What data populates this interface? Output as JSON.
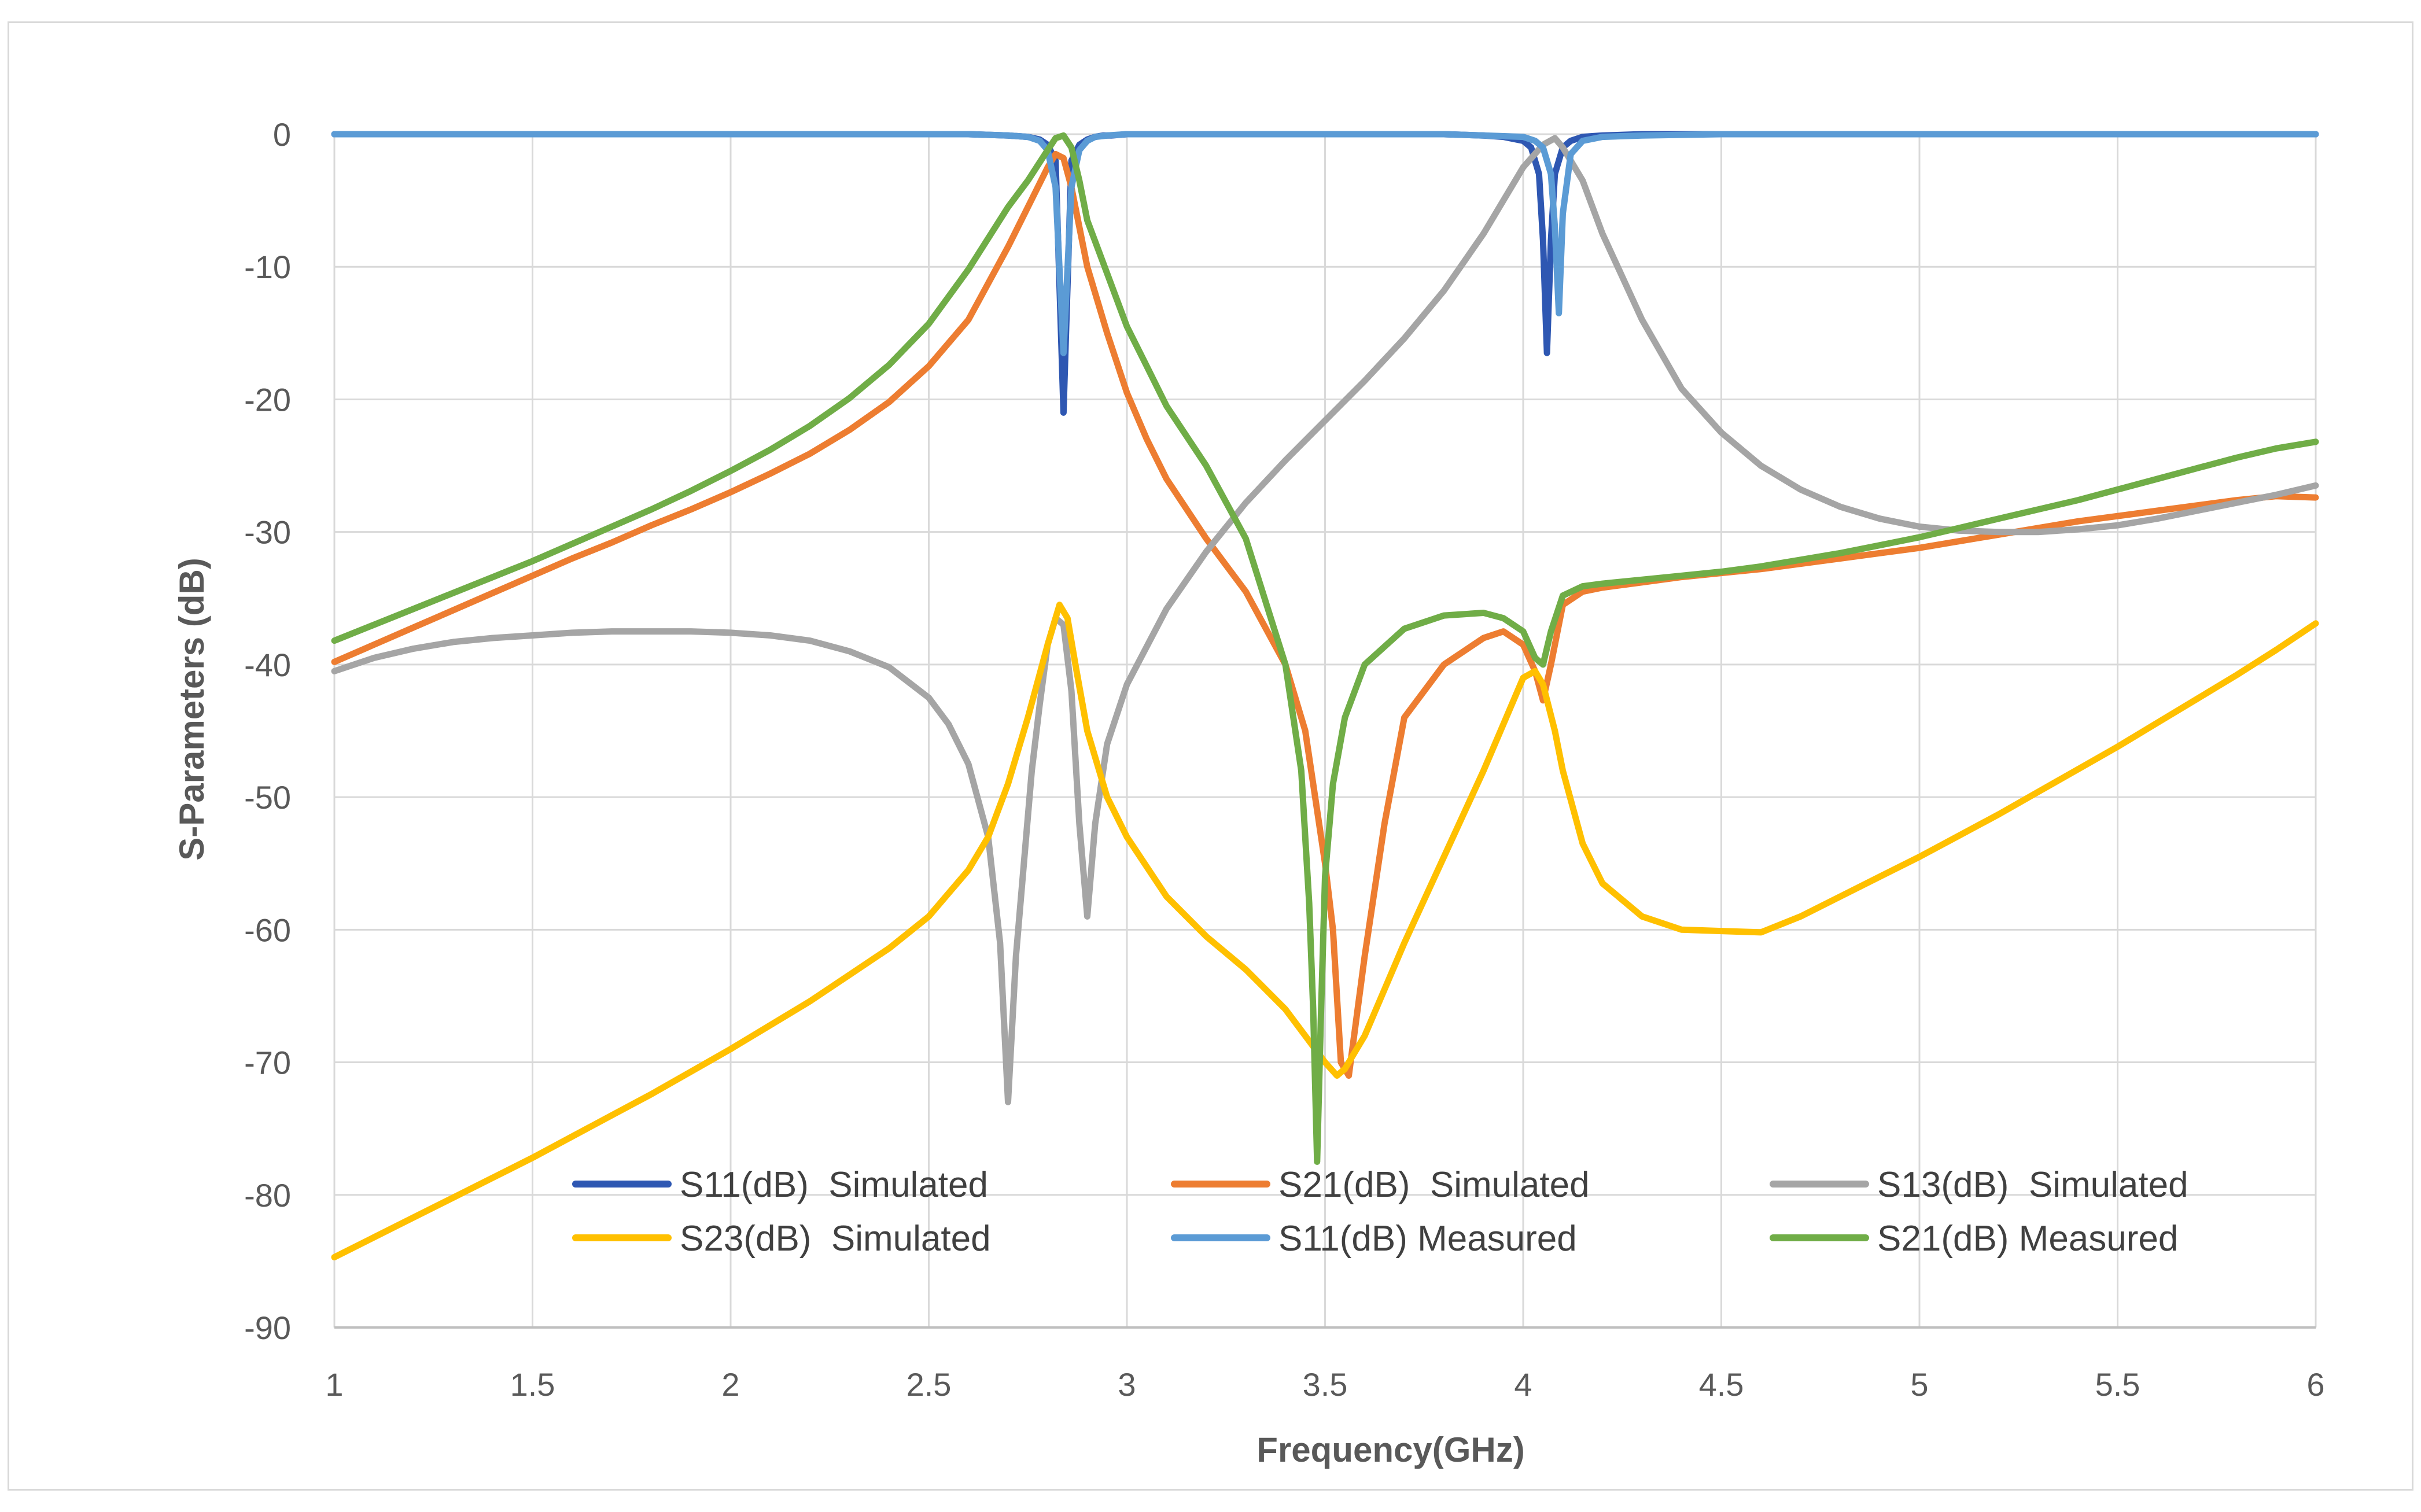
{
  "chart_data": {
    "type": "line",
    "title": "",
    "xlabel": "Frequency(GHz)",
    "ylabel": "S-Parameters (dB)",
    "xlim": [
      1,
      6
    ],
    "ylim": [
      -90,
      0
    ],
    "x_ticks": [
      "1",
      "1.5",
      "2",
      "2.5",
      "3",
      "3.5",
      "4",
      "4.5",
      "5",
      "5.5",
      "6"
    ],
    "y_ticks": [
      "0",
      "-10",
      "-20",
      "-30",
      "-40",
      "-50",
      "-60",
      "-70",
      "-80",
      "-90"
    ],
    "grid": true,
    "legend_position": "bottom-inside",
    "series": [
      {
        "name": "S11(dB)  Simulated",
        "color": "#2e57b2",
        "x": [
          1,
          1.03,
          1.05,
          1.1,
          1.2,
          1.3,
          1.4,
          1.5,
          1.6,
          1.7,
          1.8,
          1.9,
          2,
          2.1,
          2.2,
          2.3,
          2.4,
          2.5,
          2.6,
          2.7,
          2.75,
          2.78,
          2.8,
          2.82,
          2.84,
          2.86,
          2.88,
          2.9,
          2.92,
          2.94,
          2.96,
          3,
          3.1,
          3.2,
          3.3,
          3.4,
          3.5,
          3.6,
          3.7,
          3.8,
          3.9,
          3.95,
          4,
          4.02,
          4.04,
          4.05,
          4.06,
          4.07,
          4.08,
          4.1,
          4.12,
          4.15,
          4.2,
          4.3,
          4.4,
          4.5,
          4.6,
          4.7,
          4.8,
          4.9,
          5,
          5.1,
          5.2,
          5.3,
          5.4,
          5.5,
          5.6,
          5.7,
          5.8,
          5.9,
          6
        ],
        "y": [
          0,
          0,
          0,
          0,
          0,
          0,
          0,
          0,
          0,
          0,
          0,
          0,
          0,
          0,
          0,
          0,
          0,
          0,
          0,
          -0.1,
          -0.2,
          -0.4,
          -0.8,
          -2,
          -21,
          -2,
          -0.8,
          -0.4,
          -0.2,
          -0.1,
          -0.1,
          0,
          0,
          0,
          0,
          0,
          0,
          0,
          0,
          0,
          -0.1,
          -0.2,
          -0.5,
          -1,
          -3,
          -8,
          -16.5,
          -8,
          -3,
          -1,
          -0.5,
          -0.2,
          -0.1,
          0,
          0,
          0,
          0,
          0,
          0,
          0,
          0,
          0,
          0,
          0,
          0,
          0,
          0,
          0,
          0,
          0,
          0
        ]
      },
      {
        "name": "S21(dB)  Simulated",
        "color": "#ed7d31",
        "x": [
          1,
          1.1,
          1.2,
          1.3,
          1.4,
          1.5,
          1.6,
          1.7,
          1.8,
          1.9,
          2,
          2.1,
          2.2,
          2.3,
          2.4,
          2.5,
          2.6,
          2.7,
          2.75,
          2.8,
          2.82,
          2.84,
          2.86,
          2.88,
          2.9,
          2.95,
          3,
          3.05,
          3.1,
          3.2,
          3.3,
          3.4,
          3.45,
          3.5,
          3.52,
          3.54,
          3.56,
          3.6,
          3.65,
          3.7,
          3.8,
          3.9,
          3.95,
          4,
          4.03,
          4.05,
          4.07,
          4.1,
          4.15,
          4.2,
          4.3,
          4.4,
          4.5,
          4.6,
          4.7,
          4.8,
          4.9,
          5,
          5.1,
          5.2,
          5.3,
          5.4,
          5.5,
          5.6,
          5.7,
          5.8,
          5.9,
          6
        ],
        "y": [
          -39.8,
          -38.5,
          -37.2,
          -35.9,
          -34.6,
          -33.3,
          -32,
          -30.8,
          -29.5,
          -28.3,
          -27,
          -25.6,
          -24.1,
          -22.3,
          -20.2,
          -17.5,
          -14,
          -8.5,
          -5.5,
          -2.5,
          -1.5,
          -1.8,
          -4,
          -7,
          -10,
          -15,
          -19.5,
          -23,
          -26,
          -30.5,
          -34.5,
          -40,
          -45,
          -55,
          -60,
          -70,
          -71,
          -62,
          -52,
          -44,
          -40,
          -38,
          -37.5,
          -38.5,
          -40.5,
          -42.7,
          -40,
          -35.5,
          -34.5,
          -34.2,
          -33.8,
          -33.4,
          -33.1,
          -32.8,
          -32.4,
          -32,
          -31.6,
          -31.2,
          -30.7,
          -30.2,
          -29.7,
          -29.2,
          -28.8,
          -28.4,
          -28,
          -27.6,
          -27.3,
          -27.4
        ]
      },
      {
        "name": "S13(dB)  Simulated",
        "color": "#a5a5a5",
        "x": [
          1,
          1.1,
          1.2,
          1.3,
          1.4,
          1.5,
          1.6,
          1.7,
          1.8,
          1.9,
          2,
          2.1,
          2.2,
          2.3,
          2.4,
          2.5,
          2.55,
          2.6,
          2.65,
          2.68,
          2.7,
          2.72,
          2.74,
          2.76,
          2.78,
          2.8,
          2.82,
          2.84,
          2.86,
          2.88,
          2.9,
          2.92,
          2.95,
          3,
          3.1,
          3.2,
          3.3,
          3.4,
          3.5,
          3.6,
          3.7,
          3.8,
          3.9,
          3.95,
          4,
          4.05,
          4.08,
          4.1,
          4.15,
          4.2,
          4.3,
          4.4,
          4.5,
          4.6,
          4.7,
          4.8,
          4.9,
          5,
          5.1,
          5.2,
          5.3,
          5.4,
          5.5,
          5.6,
          5.7,
          5.8,
          5.9,
          6
        ],
        "y": [
          -40.5,
          -39.5,
          -38.8,
          -38.3,
          -38,
          -37.8,
          -37.6,
          -37.5,
          -37.5,
          -37.5,
          -37.6,
          -37.8,
          -38.2,
          -39,
          -40.2,
          -42.5,
          -44.5,
          -47.5,
          -53,
          -61,
          -73,
          -62,
          -55,
          -48,
          -43,
          -38.5,
          -36.5,
          -37,
          -42,
          -52,
          -59,
          -52,
          -46,
          -41.5,
          -35.8,
          -31.5,
          -27.8,
          -24.6,
          -21.6,
          -18.6,
          -15.4,
          -11.8,
          -7.5,
          -5,
          -2.5,
          -0.8,
          -0.3,
          -1,
          -3.5,
          -7.5,
          -14,
          -19.2,
          -22.5,
          -25,
          -26.8,
          -28.1,
          -29,
          -29.6,
          -29.9,
          -30,
          -30,
          -29.8,
          -29.5,
          -29,
          -28.4,
          -27.8,
          -27.2,
          -26.5
        ]
      },
      {
        "name": "S23(dB)  Simulated",
        "color": "#ffc000",
        "x": [
          1,
          1.1,
          1.2,
          1.3,
          1.4,
          1.5,
          1.6,
          1.7,
          1.8,
          1.9,
          2,
          2.1,
          2.2,
          2.3,
          2.4,
          2.5,
          2.6,
          2.65,
          2.7,
          2.75,
          2.8,
          2.83,
          2.85,
          2.87,
          2.9,
          2.95,
          3,
          3.1,
          3.2,
          3.3,
          3.4,
          3.45,
          3.5,
          3.53,
          3.55,
          3.57,
          3.6,
          3.65,
          3.7,
          3.8,
          3.9,
          3.95,
          4,
          4.03,
          4.05,
          4.08,
          4.1,
          4.15,
          4.2,
          4.3,
          4.4,
          4.5,
          4.6,
          4.7,
          4.8,
          4.9,
          5,
          5.1,
          5.2,
          5.3,
          5.4,
          5.5,
          5.6,
          5.7,
          5.8,
          5.9,
          6
        ],
        "y": [
          -84.7,
          -83.2,
          -81.7,
          -80.2,
          -78.7,
          -77.2,
          -75.6,
          -74,
          -72.4,
          -70.7,
          -69,
          -67.2,
          -65.4,
          -63.4,
          -61.4,
          -59,
          -55.5,
          -53,
          -49,
          -44,
          -38.5,
          -35.5,
          -36.5,
          -40,
          -45,
          -50,
          -53,
          -57.5,
          -60.5,
          -63,
          -66,
          -68,
          -70,
          -71,
          -70.5,
          -69.5,
          -68,
          -64.5,
          -61,
          -54.5,
          -48,
          -44.5,
          -41,
          -40.5,
          -41.5,
          -45,
          -48,
          -53.5,
          -56.5,
          -59,
          -60,
          -60.1,
          -60.2,
          -59,
          -57.5,
          -56,
          -54.5,
          -52.9,
          -51.3,
          -49.6,
          -47.9,
          -46.2,
          -44.4,
          -42.6,
          -40.8,
          -38.9,
          -36.9
        ]
      },
      {
        "name": "S11(dB) Measured",
        "color": "#5b9bd5",
        "x": [
          1,
          1.2,
          1.4,
          1.6,
          1.8,
          2,
          2.2,
          2.4,
          2.6,
          2.7,
          2.75,
          2.78,
          2.8,
          2.82,
          2.84,
          2.86,
          2.88,
          2.9,
          2.92,
          2.95,
          3,
          3.2,
          3.4,
          3.6,
          3.8,
          3.9,
          4,
          4.03,
          4.05,
          4.07,
          4.08,
          4.09,
          4.1,
          4.12,
          4.15,
          4.2,
          4.3,
          4.5,
          4.7,
          5,
          5.5,
          6
        ],
        "y": [
          0,
          0,
          0,
          0,
          0,
          0,
          0,
          0,
          0,
          -0.1,
          -0.2,
          -0.5,
          -1.2,
          -4,
          -16.5,
          -4,
          -1.2,
          -0.5,
          -0.2,
          -0.1,
          0,
          0,
          0,
          0,
          0,
          -0.1,
          -0.2,
          -0.5,
          -1,
          -3,
          -7,
          -13.5,
          -6,
          -1.5,
          -0.5,
          -0.2,
          -0.1,
          0,
          0,
          0,
          0,
          0
        ]
      },
      {
        "name": "S21(dB) Measured",
        "color": "#70ad47",
        "x": [
          1,
          1.1,
          1.2,
          1.3,
          1.4,
          1.5,
          1.6,
          1.7,
          1.8,
          1.9,
          2,
          2.1,
          2.2,
          2.3,
          2.4,
          2.5,
          2.6,
          2.7,
          2.75,
          2.8,
          2.82,
          2.84,
          2.86,
          2.88,
          2.9,
          2.95,
          3,
          3.05,
          3.1,
          3.2,
          3.3,
          3.4,
          3.44,
          3.46,
          3.47,
          3.48,
          3.49,
          3.5,
          3.52,
          3.55,
          3.6,
          3.7,
          3.8,
          3.9,
          3.95,
          4,
          4.03,
          4.05,
          4.07,
          4.1,
          4.15,
          4.2,
          4.3,
          4.4,
          4.5,
          4.6,
          4.7,
          4.8,
          4.9,
          5,
          5.1,
          5.2,
          5.3,
          5.4,
          5.5,
          5.6,
          5.7,
          5.8,
          5.9,
          6
        ],
        "y": [
          -38.2,
          -37,
          -35.8,
          -34.6,
          -33.4,
          -32.2,
          -30.9,
          -29.6,
          -28.3,
          -26.9,
          -25.4,
          -23.8,
          -22,
          -19.9,
          -17.4,
          -14.3,
          -10.2,
          -5.5,
          -3.5,
          -1.2,
          -0.3,
          -0.1,
          -1,
          -3.5,
          -6.5,
          -10.5,
          -14.5,
          -17.5,
          -20.5,
          -25,
          -30.5,
          -40,
          -48,
          -58,
          -66,
          -77.5,
          -66,
          -56,
          -49,
          -44,
          -40,
          -37.3,
          -36.3,
          -36.1,
          -36.5,
          -37.5,
          -39.5,
          -40,
          -37.5,
          -34.8,
          -34.1,
          -33.9,
          -33.6,
          -33.3,
          -33,
          -32.6,
          -32.1,
          -31.6,
          -31,
          -30.4,
          -29.7,
          -29,
          -28.3,
          -27.6,
          -26.8,
          -26,
          -25.2,
          -24.4,
          -23.7,
          -23.2
        ]
      }
    ]
  }
}
